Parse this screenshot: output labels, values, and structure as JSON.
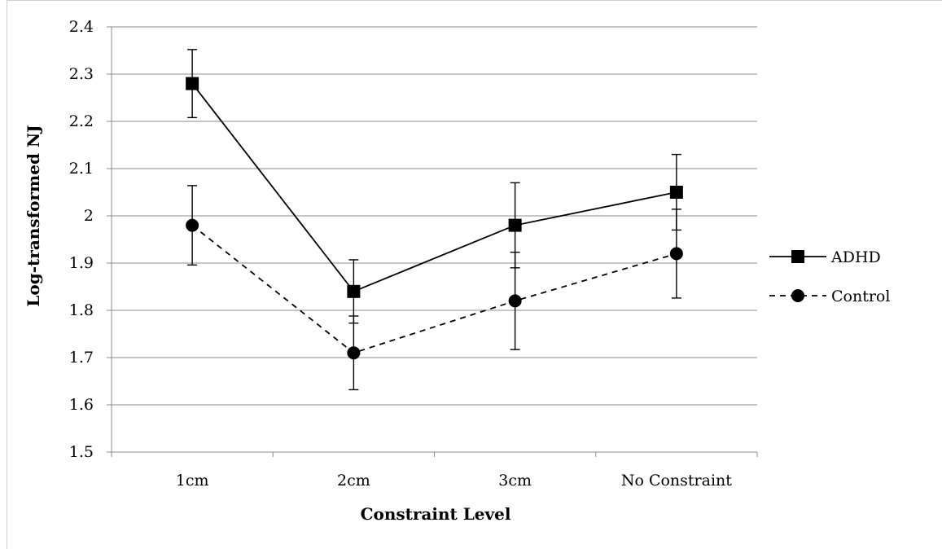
{
  "chart_data": {
    "type": "line",
    "title": "",
    "xlabel": "Constraint Level",
    "ylabel": "Log-transformed NJ",
    "categories": [
      "1cm",
      "2cm",
      "3cm",
      "No Constraint"
    ],
    "ylim": [
      1.5,
      2.4
    ],
    "yticks": [
      1.5,
      1.6,
      1.7,
      1.8,
      1.9,
      2,
      2.1,
      2.2,
      2.3,
      2.4
    ],
    "ytick_labels": [
      "1.5",
      "1.6",
      "1.7",
      "1.8",
      "1.9",
      "2",
      "2.1",
      "2.2",
      "2.3",
      "2.4"
    ],
    "grid": true,
    "legend_position": "right",
    "series": [
      {
        "name": "ADHD",
        "values": [
          2.28,
          1.84,
          1.98,
          2.05
        ],
        "error": [
          0.072,
          0.067,
          0.09,
          0.08
        ],
        "marker": "square",
        "line_style": "solid",
        "color": "#000000"
      },
      {
        "name": "Control",
        "values": [
          1.98,
          1.71,
          1.82,
          1.92
        ],
        "error": [
          0.084,
          0.078,
          0.103,
          0.094
        ],
        "marker": "circle",
        "line_style": "dashed",
        "color": "#000000"
      }
    ]
  }
}
